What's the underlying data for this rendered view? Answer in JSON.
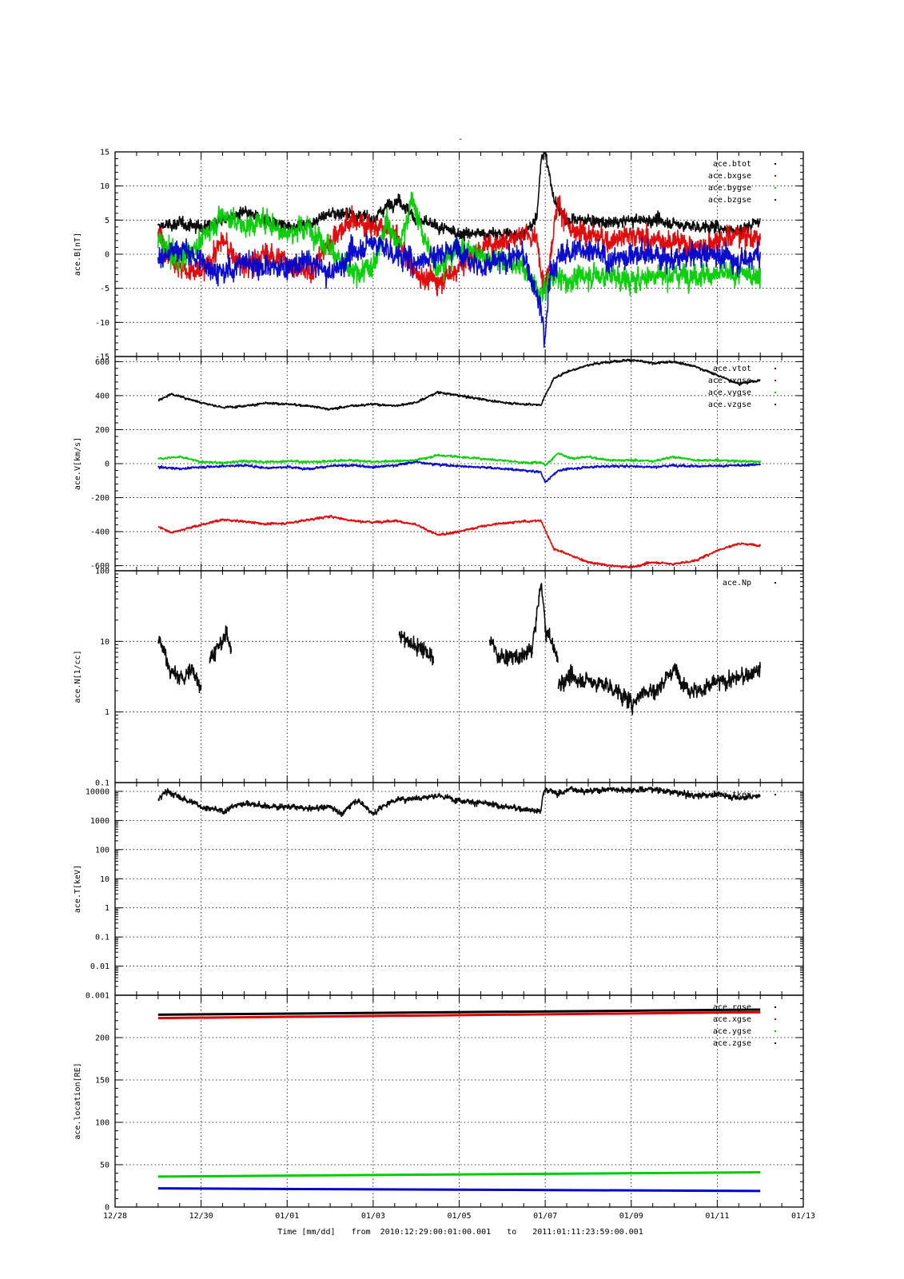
{
  "figure": {
    "title": "-",
    "xlabel": "Time [mm/dd]",
    "time_range": {
      "from_label": "from",
      "from": "2010:12:29:00:01:00.001",
      "to_label": "to",
      "to": "2011:01:11:23:59:00.001"
    },
    "x_tick_labels": [
      "12/28",
      "12/30",
      "01/01",
      "01/03",
      "01/05",
      "01/07",
      "01/09",
      "01/11",
      "01/13"
    ],
    "x_tick_days": [
      0,
      2,
      4,
      6,
      8,
      10,
      12,
      14,
      16
    ],
    "xlim_days": [
      0,
      16
    ],
    "x_origin_date": "2010-12-28"
  },
  "colors": {
    "black": "#000000",
    "red": "#dd0000",
    "green": "#00cc00",
    "blue": "#0000cc"
  },
  "chart_data": [
    {
      "type": "scatter",
      "ylabel": "ace.B[nT]",
      "ylim": [
        -15,
        15
      ],
      "yscale": "linear",
      "y_ticks": [
        -15,
        -10,
        -5,
        0,
        5,
        10,
        15
      ],
      "y_tick_labels": [
        "-15",
        "-10",
        "-5",
        "0",
        "5",
        "10",
        "15"
      ],
      "grid": true,
      "legend": "top-right",
      "x_unit": "days since 12/28",
      "series": [
        {
          "name": "ace.btot",
          "color": "#000000",
          "noise": 0.8,
          "x": [
            1.0,
            1.5,
            2.0,
            2.5,
            3.0,
            3.5,
            4.0,
            4.5,
            5.0,
            5.5,
            6.0,
            6.3,
            6.6,
            7.0,
            7.5,
            8.0,
            8.5,
            9.0,
            9.5,
            9.8,
            9.9,
            10.0,
            10.2,
            10.5,
            11.0,
            11.5,
            12.0,
            12.5,
            13.0,
            13.5,
            14.0,
            14.5,
            15.0
          ],
          "y": [
            4,
            4.5,
            4,
            5,
            6,
            5,
            4,
            4.5,
            6,
            6,
            5,
            7,
            8,
            5,
            4,
            3,
            3,
            3,
            3,
            5,
            14,
            15,
            8,
            5,
            5,
            4.5,
            5,
            5,
            4.5,
            4,
            4,
            3.5,
            5
          ]
        },
        {
          "name": "ace.bxgse",
          "color": "#dd0000",
          "noise": 1.5,
          "x": [
            1.0,
            1.5,
            2.0,
            2.5,
            3.0,
            3.5,
            4.0,
            4.5,
            5.0,
            5.5,
            6.0,
            6.5,
            7.0,
            7.5,
            8.0,
            8.5,
            9.0,
            9.5,
            9.8,
            10.0,
            10.3,
            10.6,
            11.0,
            11.5,
            12.0,
            12.5,
            13.0,
            13.5,
            14.0,
            14.5,
            15.0
          ],
          "y": [
            3,
            -2,
            -3,
            2,
            -2,
            0,
            -1,
            -3,
            2,
            5,
            4,
            3,
            -3,
            -4,
            -2,
            1,
            2,
            3,
            2,
            -5,
            8,
            3,
            3,
            2,
            3,
            2,
            2,
            1,
            2,
            3,
            2
          ]
        },
        {
          "name": "ace.bygse",
          "color": "#00cc00",
          "noise": 1.5,
          "x": [
            1.0,
            1.5,
            2.0,
            2.5,
            3.0,
            3.5,
            4.0,
            4.5,
            5.0,
            5.5,
            6.0,
            6.3,
            6.6,
            6.9,
            7.2,
            7.5,
            8.0,
            8.5,
            9.0,
            9.5,
            9.9,
            10.2,
            10.5,
            11.0,
            11.5,
            12.0,
            12.5,
            13.0,
            13.5,
            14.0,
            14.5,
            15.0
          ],
          "y": [
            2,
            -1,
            2,
            6,
            4,
            5,
            3,
            4,
            1,
            -3,
            -2,
            5,
            1,
            8,
            2,
            -2,
            1,
            0,
            -1,
            -2,
            -6,
            -3,
            -4,
            -3,
            -3,
            -4,
            -3,
            -3,
            -3,
            -3,
            -3,
            -3
          ]
        },
        {
          "name": "ace.bzgse",
          "color": "#0000cc",
          "noise": 1.6,
          "x": [
            1.0,
            1.5,
            2.0,
            2.5,
            3.0,
            3.5,
            4.0,
            4.5,
            5.0,
            5.5,
            6.0,
            6.5,
            7.0,
            7.5,
            8.0,
            8.5,
            9.0,
            9.5,
            9.9,
            10.0,
            10.1,
            10.4,
            11.0,
            11.5,
            12.0,
            12.5,
            13.0,
            13.5,
            14.0,
            14.5,
            15.0
          ],
          "y": [
            -1,
            1,
            -1,
            -3,
            -1,
            -2,
            -2,
            -1,
            -3,
            0,
            2,
            0,
            -1,
            0,
            1,
            -2,
            -1,
            0,
            -8,
            -13,
            -3,
            0,
            1,
            -1,
            0,
            0,
            -1,
            0,
            0,
            -1,
            0
          ]
        }
      ]
    },
    {
      "type": "scatter",
      "ylabel": "ace.V[km/s]",
      "ylim": [
        -630,
        630
      ],
      "yscale": "linear",
      "y_ticks": [
        -600,
        -400,
        -200,
        0,
        200,
        400,
        600
      ],
      "y_tick_labels": [
        "-600",
        "-400",
        "-200",
        "0",
        "200",
        "400",
        "600"
      ],
      "grid": true,
      "legend": "top-right",
      "x_unit": "days since 12/28",
      "series": [
        {
          "name": "ace.vtot",
          "color": "#000000",
          "noise": 6,
          "x": [
            1.0,
            1.3,
            2.0,
            2.5,
            3.0,
            3.5,
            4.0,
            4.5,
            5.0,
            5.5,
            6.0,
            6.5,
            7.0,
            7.5,
            8.0,
            8.5,
            9.0,
            9.5,
            9.9,
            10.0,
            10.2,
            10.5,
            11.0,
            11.5,
            12.0,
            12.5,
            13.0,
            13.5,
            14.0,
            14.5,
            15.0
          ],
          "y": [
            370,
            410,
            360,
            330,
            340,
            355,
            350,
            340,
            320,
            340,
            350,
            340,
            360,
            420,
            400,
            380,
            360,
            350,
            345,
            400,
            500,
            540,
            580,
            600,
            610,
            590,
            600,
            570,
            520,
            470,
            490
          ]
        },
        {
          "name": "ace.vxgse",
          "color": "#dd0000",
          "noise": 6,
          "x": [
            1.0,
            1.3,
            2.0,
            2.5,
            3.0,
            3.5,
            4.0,
            4.5,
            5.0,
            5.5,
            6.0,
            6.5,
            7.0,
            7.5,
            8.0,
            8.5,
            9.0,
            9.5,
            9.9,
            10.0,
            10.2,
            10.5,
            11.0,
            11.5,
            12.0,
            12.5,
            13.0,
            13.5,
            14.0,
            14.5,
            15.0
          ],
          "y": [
            -370,
            -405,
            -360,
            -330,
            -340,
            -355,
            -350,
            -330,
            -310,
            -335,
            -345,
            -335,
            -360,
            -420,
            -400,
            -370,
            -350,
            -340,
            -335,
            -390,
            -500,
            -530,
            -580,
            -600,
            -610,
            -580,
            -590,
            -570,
            -510,
            -470,
            -480
          ]
        },
        {
          "name": "ace.vygse",
          "color": "#00cc00",
          "noise": 6,
          "x": [
            1.0,
            1.5,
            2.0,
            2.5,
            3.0,
            3.5,
            4.0,
            4.5,
            5.0,
            5.5,
            6.0,
            6.5,
            7.0,
            7.5,
            8.0,
            8.5,
            9.0,
            9.5,
            9.9,
            10.0,
            10.3,
            10.6,
            11.0,
            11.5,
            12.0,
            12.5,
            13.0,
            13.5,
            14.0,
            14.5,
            15.0
          ],
          "y": [
            30,
            40,
            10,
            5,
            15,
            10,
            15,
            10,
            15,
            20,
            10,
            15,
            20,
            50,
            40,
            30,
            20,
            5,
            10,
            -10,
            60,
            30,
            40,
            20,
            20,
            15,
            40,
            20,
            20,
            15,
            10
          ]
        },
        {
          "name": "ace.vzgse",
          "color": "#0000cc",
          "noise": 6,
          "x": [
            1.0,
            1.5,
            2.0,
            2.5,
            3.0,
            3.5,
            4.0,
            4.5,
            5.0,
            5.5,
            6.0,
            6.5,
            7.0,
            7.5,
            8.0,
            8.5,
            9.0,
            9.5,
            9.9,
            10.0,
            10.3,
            10.6,
            11.0,
            11.5,
            12.0,
            12.5,
            13.0,
            13.5,
            14.0,
            14.5,
            15.0
          ],
          "y": [
            -20,
            -30,
            -20,
            -15,
            -10,
            -25,
            -20,
            -30,
            -15,
            -10,
            -20,
            -10,
            10,
            -5,
            -15,
            -20,
            -30,
            -40,
            -50,
            -110,
            -40,
            -30,
            -20,
            -15,
            -15,
            -20,
            -10,
            -15,
            -15,
            -10,
            -5
          ]
        }
      ]
    },
    {
      "type": "scatter",
      "ylabel": "ace.N[1/cc]",
      "ylim": [
        0.1,
        100
      ],
      "yscale": "log",
      "y_ticks": [
        0.1,
        1,
        10,
        100
      ],
      "y_tick_labels": [
        "0.1",
        "1",
        "10",
        "100"
      ],
      "grid": true,
      "legend": "top-right",
      "x_unit": "days since 12/28",
      "series": [
        {
          "name": "ace.Np",
          "color": "#000000",
          "noise": 0.12,
          "segments": [
            {
              "x": [
                1.0,
                1.15,
                1.3,
                1.6,
                1.8,
                2.0
              ],
              "y": [
                10,
                7,
                3.5,
                3,
                4,
                2.2
              ]
            },
            {
              "x": [
                2.2,
                2.4,
                2.6,
                2.7
              ],
              "y": [
                6,
                8,
                12,
                9
              ]
            },
            {
              "x": [
                6.6,
                6.9,
                7.2,
                7.4
              ],
              "y": [
                12,
                9,
                8,
                5
              ]
            },
            {
              "x": [
                8.7,
                8.9,
                9.2,
                9.5,
                9.7
              ],
              "y": [
                11,
                6,
                6,
                6,
                8
              ]
            },
            {
              "x": [
                9.7,
                9.8,
                9.9,
                10.0,
                10.2,
                10.3
              ],
              "y": [
                8,
                20,
                60,
                15,
                8,
                5
              ]
            },
            {
              "x": [
                10.3,
                10.5,
                11.0,
                11.5,
                12.0,
                12.3,
                12.6,
                13.0,
                13.3,
                13.6,
                14.0,
                14.5,
                15.0
              ],
              "y": [
                2.5,
                3,
                2.8,
                2.3,
                1.3,
                2,
                2,
                4,
                2.2,
                2,
                2.6,
                3,
                4
              ]
            }
          ]
        }
      ]
    },
    {
      "type": "scatter",
      "ylabel": "ace.T[keV]",
      "ylim": [
        0.001,
        20000
      ],
      "yscale": "log",
      "y_ticks": [
        0.001,
        0.01,
        0.1,
        1,
        10,
        100,
        1000,
        10000
      ],
      "y_tick_labels": [
        "0.001",
        "0.01",
        "0.1",
        "1",
        "10",
        "100",
        "1000",
        "10000"
      ],
      "grid": true,
      "legend": "top-right",
      "x_unit": "days since 12/28",
      "series": [
        {
          "name": "ace.tkev",
          "color": "#000000",
          "noise": 0.1,
          "x": [
            1.0,
            1.2,
            1.5,
            2.0,
            2.5,
            3.0,
            3.5,
            4.0,
            4.5,
            5.0,
            5.3,
            5.6,
            6.0,
            6.5,
            7.0,
            7.5,
            8.0,
            8.5,
            9.0,
            9.5,
            9.9,
            10.0,
            10.3,
            10.6,
            11.0,
            11.5,
            12.0,
            12.5,
            13.0,
            13.5,
            14.0,
            14.5,
            15.0
          ],
          "y": [
            5000,
            10000,
            6000,
            3000,
            2000,
            4000,
            3000,
            3000,
            2500,
            3000,
            1500,
            5000,
            1500,
            5000,
            6000,
            7000,
            5000,
            4000,
            3000,
            2500,
            2000,
            12000,
            8000,
            12000,
            10000,
            12000,
            11000,
            12000,
            9000,
            7000,
            8000,
            6000,
            7000
          ]
        }
      ]
    },
    {
      "type": "line",
      "ylabel": "ace.location[RE]",
      "ylim": [
        0,
        250
      ],
      "yscale": "linear",
      "y_ticks": [
        0,
        50,
        100,
        150,
        200
      ],
      "y_tick_labels": [
        "0",
        "50",
        "100",
        "150",
        "200"
      ],
      "grid": true,
      "legend": "top-right",
      "x_unit": "days since 12/28",
      "series": [
        {
          "name": "ace.rgse",
          "color": "#000000",
          "x": [
            1.0,
            15.0
          ],
          "y": [
            227,
            233
          ]
        },
        {
          "name": "ace.xgse",
          "color": "#dd0000",
          "x": [
            1.0,
            15.0
          ],
          "y": [
            223,
            230
          ]
        },
        {
          "name": "ace.ygse",
          "color": "#00cc00",
          "x": [
            1.0,
            15.0
          ],
          "y": [
            36,
            41
          ]
        },
        {
          "name": "ace.zgse",
          "color": "#0000cc",
          "x": [
            1.0,
            15.0
          ],
          "y": [
            22,
            19
          ]
        }
      ]
    }
  ]
}
